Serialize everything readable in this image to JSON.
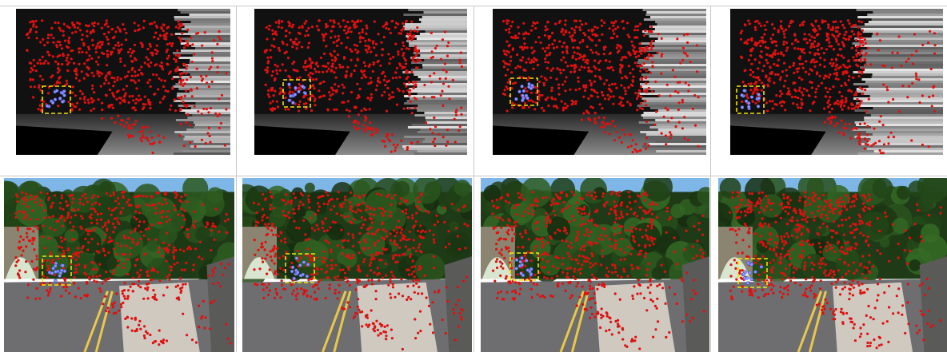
{
  "figure": {
    "rows": [
      {
        "name": "depth-maps",
        "kind": "depth"
      },
      {
        "name": "camera-frames",
        "kind": "rgb"
      }
    ],
    "columns": 4,
    "colors": {
      "feature_point": "#e01010",
      "tracked_point": "#8a96ff",
      "tracking_box": "#f2e400",
      "sky": "#7fb6e8",
      "road": "#6e6e70"
    },
    "marker_icons": [
      "red-dot-icon",
      "blue-dot-icon",
      "dashed-box-icon"
    ]
  }
}
